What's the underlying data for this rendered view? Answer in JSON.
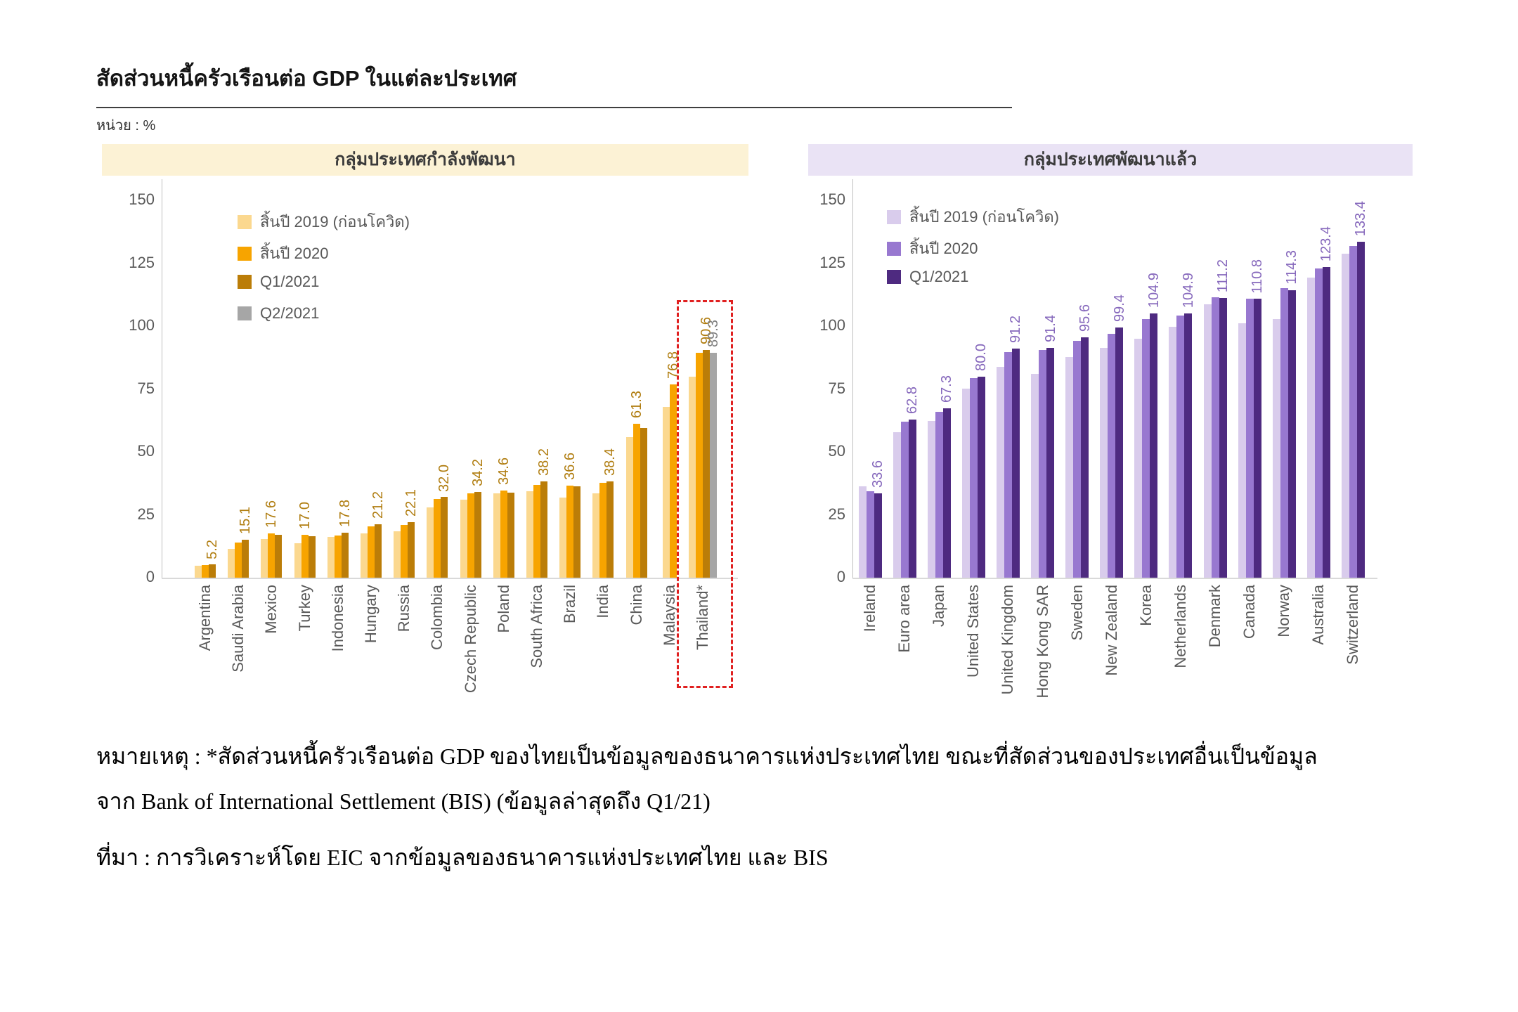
{
  "page": {
    "title": "สัดส่วนหนี้ครัวเรือนต่อ GDP ในแต่ละประเทศ",
    "unit_label": "หน่วย : %",
    "note_line1": "หมายเหตุ : *สัดส่วนหนี้ครัวเรือนต่อ GDP ของไทยเป็นข้อมูลของธนาคารแห่งประเทศไทย ขณะที่สัดส่วนของประเทศอื่นเป็นข้อมูล",
    "note_line2": "จาก Bank of International Settlement (BIS) (ข้อมูลล่าสุดถึง Q1/21)",
    "source_line": "ที่มา : การวิเคราะห์โดย EIC จากข้อมูลของธนาคารแห่งประเทศไทย และ BIS"
  },
  "chart_data": [
    {
      "type": "bar",
      "title": "กลุ่มประเทศกำลังพัฒนา",
      "header_bg": "#fcf2d5",
      "ylim": [
        0,
        150
      ],
      "yticks": [
        0,
        25,
        50,
        75,
        100,
        125,
        150
      ],
      "grid": false,
      "legend_position": "top-left-inside",
      "value_label_color": "#b07d10",
      "legend": [
        {
          "label": "สิ้นปี 2019 (ก่อนโควิด)",
          "color": "#fbd88f"
        },
        {
          "label": "สิ้นปี 2020",
          "color": "#f7a400"
        },
        {
          "label": "Q1/2021",
          "color": "#bb7d08"
        },
        {
          "label": "Q2/2021",
          "color": "#a6a6a6"
        }
      ],
      "categories": [
        "Argentina",
        "Saudi Arabia",
        "Mexico",
        "Turkey",
        "Indonesia",
        "Hungary",
        "Russia",
        "Colombia",
        "Czech Republic",
        "Poland",
        "South Africa",
        "Brazil",
        "India",
        "China",
        "Malaysia",
        "Thailand*"
      ],
      "series": [
        {
          "name": "สิ้นปี 2019 (ก่อนโควิด)",
          "values": [
            4.8,
            11.4,
            15.3,
            13.8,
            16.3,
            17.6,
            18.4,
            27.9,
            31.0,
            33.4,
            34.4,
            31.8,
            33.6,
            55.8,
            67.8,
            79.9
          ]
        },
        {
          "name": "สิ้นปี 2020",
          "values": [
            4.9,
            13.9,
            17.6,
            17.0,
            16.9,
            20.4,
            21.0,
            31.3,
            33.5,
            34.6,
            36.9,
            36.6,
            37.7,
            61.3,
            76.8,
            89.4
          ]
        },
        {
          "name": "Q1/2021",
          "values": [
            5.2,
            15.1,
            17.0,
            16.4,
            17.8,
            21.2,
            22.1,
            32.0,
            34.2,
            33.9,
            38.2,
            36.4,
            38.4,
            59.6,
            null,
            90.6
          ]
        },
        {
          "name": "Q2/2021",
          "values": [
            null,
            null,
            null,
            null,
            null,
            null,
            null,
            null,
            null,
            null,
            null,
            null,
            null,
            null,
            null,
            89.3
          ]
        }
      ],
      "value_labels": [
        [
          {
            "text": "5.2",
            "series": 2
          }
        ],
        [
          {
            "text": "15.1",
            "series": 2
          }
        ],
        [
          {
            "text": "17.6",
            "series": 1
          }
        ],
        [
          {
            "text": "17.0",
            "series": 1
          }
        ],
        [
          {
            "text": "17.8",
            "series": 2
          }
        ],
        [
          {
            "text": "21.2",
            "series": 2
          }
        ],
        [
          {
            "text": "22.1",
            "series": 2
          }
        ],
        [
          {
            "text": "32.0",
            "series": 2
          }
        ],
        [
          {
            "text": "34.2",
            "series": 2
          }
        ],
        [
          {
            "text": "34.6",
            "series": 1
          }
        ],
        [
          {
            "text": "38.2",
            "series": 2
          }
        ],
        [
          {
            "text": "36.6",
            "series": 1
          }
        ],
        [
          {
            "text": "38.4",
            "series": 2
          }
        ],
        [
          {
            "text": "61.3",
            "series": 1
          }
        ],
        [
          {
            "text": "76.8",
            "series": 1
          }
        ],
        [
          {
            "text": "90.6",
            "series": 2
          },
          {
            "text": "89.3",
            "series": 3,
            "color": "#7f7f7f"
          }
        ]
      ],
      "highlight_box_around": "Thailand*",
      "highlight_color": "#e02020"
    },
    {
      "type": "bar",
      "title": "กลุ่มประเทศพัฒนาแล้ว",
      "header_bg": "#eae3f5",
      "ylim": [
        0,
        150
      ],
      "yticks": [
        0,
        25,
        50,
        75,
        100,
        125,
        150
      ],
      "grid": false,
      "legend_position": "top-left-inside",
      "value_label_color": "#8668bc",
      "legend": [
        {
          "label": "สิ้นปี 2019 (ก่อนโควิด)",
          "color": "#d9ccec"
        },
        {
          "label": "สิ้นปี 2020",
          "color": "#9878d0"
        },
        {
          "label": "Q1/2021",
          "color": "#4e2a80"
        }
      ],
      "categories": [
        "Ireland",
        "Euro area",
        "Japan",
        "United States",
        "United Kingdom",
        "Hong Kong SAR",
        "Sweden",
        "New Zealand",
        "Korea",
        "Netherlands",
        "Denmark",
        "Canada",
        "Norway",
        "Australia",
        "Switzerland"
      ],
      "series": [
        {
          "name": "สิ้นปี 2019 (ก่อนโควิด)",
          "values": [
            36.4,
            57.9,
            62.2,
            75.2,
            83.9,
            81.0,
            87.7,
            91.4,
            95.1,
            99.8,
            108.6,
            101.2,
            102.9,
            119.2,
            128.9
          ]
        },
        {
          "name": "สิ้นปี 2020",
          "values": [
            34.3,
            62.1,
            66.0,
            79.2,
            89.6,
            90.4,
            94.2,
            96.8,
            102.8,
            104.3,
            111.5,
            111.0,
            115.2,
            123.0,
            131.9
          ]
        },
        {
          "name": "Q1/2021",
          "values": [
            33.6,
            62.8,
            67.3,
            80.0,
            91.2,
            91.4,
            95.6,
            99.4,
            104.9,
            104.9,
            111.2,
            110.8,
            114.3,
            123.4,
            133.4
          ]
        }
      ],
      "value_labels": [
        [
          {
            "text": "33.6",
            "series": 2
          }
        ],
        [
          {
            "text": "62.8",
            "series": 2
          }
        ],
        [
          {
            "text": "67.3",
            "series": 2
          }
        ],
        [
          {
            "text": "80.0",
            "series": 2
          }
        ],
        [
          {
            "text": "91.2",
            "series": 2
          }
        ],
        [
          {
            "text": "91.4",
            "series": 2
          }
        ],
        [
          {
            "text": "95.6",
            "series": 2
          }
        ],
        [
          {
            "text": "99.4",
            "series": 2
          }
        ],
        [
          {
            "text": "104.9",
            "series": 2
          }
        ],
        [
          {
            "text": "104.9",
            "series": 2
          }
        ],
        [
          {
            "text": "111.2",
            "series": 2
          }
        ],
        [
          {
            "text": "110.8",
            "series": 2
          }
        ],
        [
          {
            "text": "114.3",
            "series": 2
          }
        ],
        [
          {
            "text": "123.4",
            "series": 2
          }
        ],
        [
          {
            "text": "133.4",
            "series": 2
          }
        ]
      ]
    }
  ]
}
